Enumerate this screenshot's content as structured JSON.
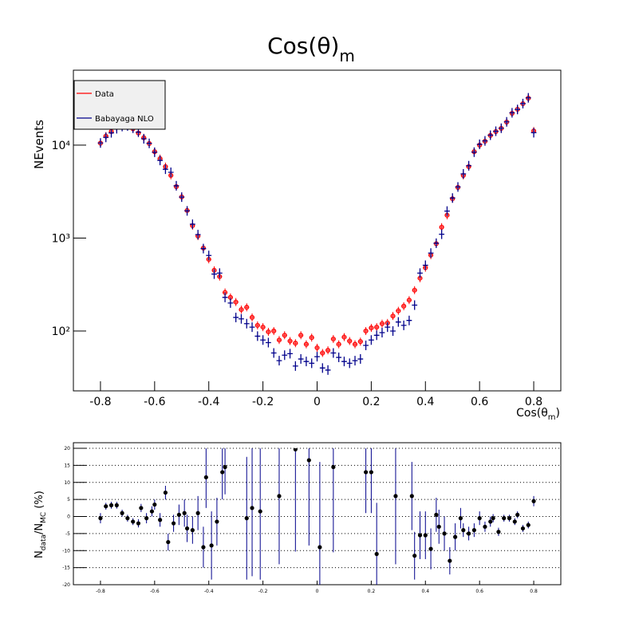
{
  "chart_data": [
    {
      "type": "scatter",
      "title": [
        "Cos(θ)",
        "m"
      ],
      "ylabel": "NEvents",
      "xlabel": [
        "Cos(θ",
        "m",
        ")"
      ],
      "log_y": true,
      "legend": "top-left",
      "xlim": [
        -0.9,
        0.9
      ],
      "xticks": [
        -0.8,
        -0.6,
        -0.4,
        -0.2,
        0,
        0.2,
        0.4,
        0.6,
        0.8
      ],
      "ylim": [
        22.7,
        64000
      ],
      "yticks": [
        {
          "value": 100,
          "label": "10²"
        },
        {
          "value": 1000,
          "label": "10³"
        },
        {
          "value": 10000,
          "label": "10⁴"
        }
      ],
      "x": [
        -0.8,
        -0.78,
        -0.76,
        -0.74,
        -0.72,
        -0.7,
        -0.68,
        -0.66,
        -0.64,
        -0.62,
        -0.6,
        -0.58,
        -0.56,
        -0.54,
        -0.52,
        -0.5,
        -0.48,
        -0.46,
        -0.44,
        -0.42,
        -0.4,
        -0.38,
        -0.36,
        -0.34,
        -0.32,
        -0.3,
        -0.28,
        -0.26,
        -0.24,
        -0.22,
        -0.2,
        -0.18,
        -0.16,
        -0.14,
        -0.12,
        -0.1,
        -0.08,
        -0.06,
        -0.04,
        -0.02,
        0,
        0.02,
        0.04,
        0.06,
        0.08,
        0.1,
        0.12,
        0.14,
        0.16,
        0.18,
        0.2,
        0.22,
        0.24,
        0.26,
        0.28,
        0.3,
        0.32,
        0.34,
        0.36,
        0.38,
        0.4,
        0.42,
        0.44,
        0.46,
        0.48,
        0.5,
        0.52,
        0.54,
        0.56,
        0.58,
        0.6,
        0.62,
        0.64,
        0.66,
        0.68,
        0.7,
        0.72,
        0.74,
        0.76,
        0.78,
        0.8
      ],
      "series": [
        {
          "name": "Data",
          "color": "#ff0000",
          "marker": "circle",
          "values": [
            10500,
            12500,
            14000,
            15500,
            16000,
            16000,
            15000,
            13500,
            12000,
            10400,
            8500,
            7150,
            5870,
            4720,
            3580,
            2770,
            1980,
            1360,
            1050,
            780,
            590,
            450,
            385,
            260,
            230,
            205,
            170,
            180,
            140,
            115,
            110,
            98,
            100,
            80,
            90,
            78,
            74,
            90,
            72,
            85,
            66,
            58,
            62,
            82,
            72,
            86,
            78,
            72,
            77,
            100,
            108,
            110,
            120,
            122,
            145,
            165,
            185,
            215,
            275,
            370,
            480,
            655,
            870,
            1310,
            1760,
            2650,
            3510,
            4720,
            5870,
            8500,
            10000,
            11000,
            12700,
            14000,
            15150,
            17700,
            22000,
            24300,
            27900,
            32000,
            14200
          ]
        },
        {
          "name": "Babayaga NLO",
          "color": "#00008b",
          "marker": "cross",
          "values": [
            10550,
            12100,
            13550,
            15000,
            15850,
            16100,
            15200,
            13800,
            11700,
            10450,
            8380,
            6850,
            5500,
            5100,
            3650,
            2760,
            1960,
            1410,
            1090,
            770,
            650,
            410,
            420,
            230,
            200,
            140,
            135,
            120,
            110,
            88,
            80,
            75,
            58,
            48,
            55,
            57,
            42,
            50,
            47,
            45,
            53,
            40,
            38,
            58,
            52,
            47,
            45,
            48,
            50,
            70,
            80,
            90,
            96,
            110,
            100,
            125,
            115,
            130,
            190,
            420,
            510,
            690,
            880,
            1100,
            1950,
            2700,
            3550,
            4900,
            6000,
            8400,
            10200,
            11100,
            12800,
            14100,
            15200,
            17800,
            22300,
            24200,
            28000,
            32300,
            13600
          ]
        }
      ]
    },
    {
      "type": "errorbar",
      "ylabel": [
        "N",
        "data",
        "/N",
        "MC",
        " (%)"
      ],
      "color": "#000000",
      "error_color": "#00008b",
      "xlim": [
        -0.9,
        0.9
      ],
      "xticks": [
        -0.8,
        -0.6,
        -0.4,
        -0.2,
        0,
        0.2,
        0.4,
        0.6,
        0.8
      ],
      "ylim": [
        -20,
        20
      ],
      "yticks": [
        -20,
        -15,
        -10,
        -5,
        0,
        5,
        10,
        15,
        20
      ],
      "grid": true,
      "x": [
        -0.8,
        -0.78,
        -0.76,
        -0.74,
        -0.72,
        -0.7,
        -0.68,
        -0.66,
        -0.65,
        -0.63,
        -0.61,
        -0.6,
        -0.58,
        -0.56,
        -0.55,
        -0.53,
        -0.51,
        -0.49,
        -0.48,
        -0.46,
        -0.44,
        -0.42,
        -0.41,
        -0.39,
        -0.37,
        -0.35,
        -0.34,
        -0.26,
        -0.24,
        -0.21,
        -0.14,
        -0.08,
        -0.03,
        0.01,
        0.06,
        0.18,
        0.2,
        0.22,
        0.29,
        0.35,
        0.36,
        0.38,
        0.4,
        0.42,
        0.44,
        0.45,
        0.47,
        0.49,
        0.51,
        0.53,
        0.54,
        0.56,
        0.58,
        0.6,
        0.62,
        0.64,
        0.65,
        0.67,
        0.69,
        0.71,
        0.73,
        0.74,
        0.76,
        0.78,
        0.8
      ],
      "values": [
        -0.5,
        3,
        3.3,
        3.3,
        1,
        -0.5,
        -1.5,
        -2,
        2.5,
        -0.5,
        1.5,
        3.5,
        -1,
        7,
        -7.5,
        -2,
        0.5,
        1,
        -3.5,
        -4,
        1,
        -9,
        11.5,
        -8.5,
        -1.5,
        13,
        14.5,
        -0.5,
        2.5,
        1.5,
        6,
        19.7,
        16.5,
        -9,
        14.5,
        13,
        13,
        -11,
        6,
        6,
        -11.5,
        -5.5,
        -5.5,
        -9.5,
        0.5,
        -3,
        -5,
        -13,
        -6,
        -0.5,
        -4,
        -5,
        -4,
        -0.5,
        -3,
        -1.5,
        -0.5,
        -4.5,
        -0.5,
        -0.5,
        -1.5,
        0.5,
        -3.5,
        -2.5,
        4.5
      ],
      "errors": [
        1.5,
        1,
        1,
        1,
        1,
        1,
        1,
        1.2,
        1.2,
        1.5,
        1.5,
        1.5,
        2,
        2,
        2.5,
        2.5,
        3,
        4,
        4,
        4,
        5,
        6,
        9,
        10,
        7,
        8,
        8,
        18,
        20,
        20,
        20,
        30,
        25,
        25,
        25,
        12,
        12,
        15,
        20,
        10,
        7,
        7,
        7,
        6,
        5,
        5,
        5,
        4,
        4,
        3,
        2,
        2,
        2,
        2,
        1.5,
        1.5,
        1.2,
        1.2,
        1,
        1,
        1,
        1,
        1,
        1,
        1.5
      ]
    }
  ]
}
